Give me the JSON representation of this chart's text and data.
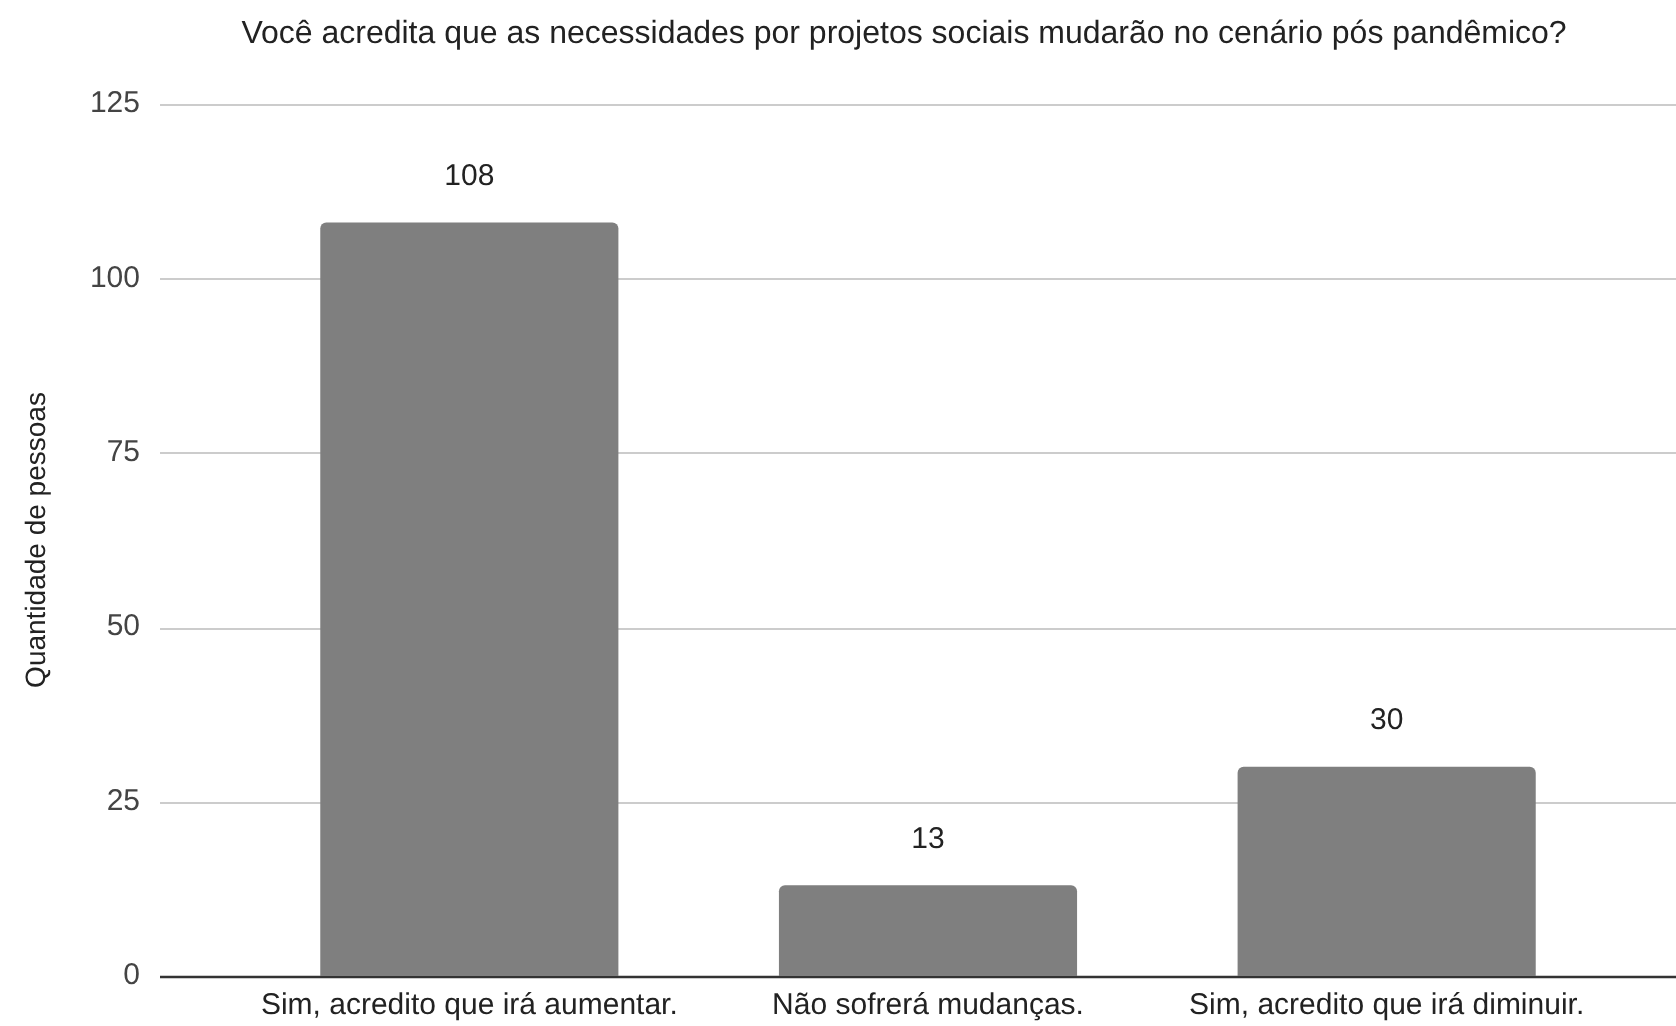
{
  "chart_data": {
    "type": "bar",
    "title": "Você acredita que as necessidades por projetos sociais mudarão no cenário pós pandêmico?",
    "ylabel": "Quantidade de pessoas",
    "categories": [
      "Sim, acredito que irá aumentar.",
      "Não sofrerá mudanças.",
      "Sim, acredito que irá diminuir."
    ],
    "values": [
      108,
      13,
      30
    ],
    "color": "#7f7f7f",
    "ylim": [
      0,
      125
    ],
    "yticks": [
      0,
      25,
      50,
      75,
      100,
      125
    ],
    "grid": "y",
    "data_labels": true
  }
}
